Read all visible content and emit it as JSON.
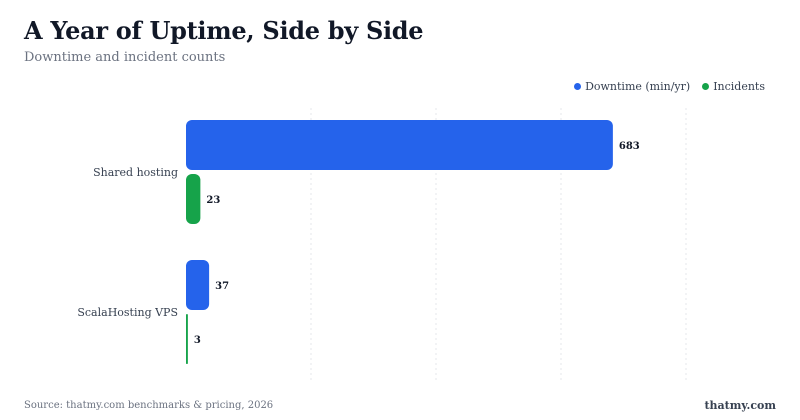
{
  "header": {
    "title": "A Year of Uptime, Side by Side",
    "subtitle": "Downtime and incident counts"
  },
  "footer": {
    "source": "Source: thatmy.com benchmarks & pricing, 2026",
    "brand": "thatmy.com"
  },
  "colors": {
    "downtime": "#2563eb",
    "incidents": "#16a34a",
    "grid": "#e5e7eb"
  },
  "chart_data": {
    "type": "bar",
    "orientation": "horizontal",
    "categories": [
      "Shared hosting",
      "ScalaHosting VPS"
    ],
    "series": [
      {
        "name": "Downtime (min/yr)",
        "values": [
          683,
          37
        ]
      },
      {
        "name": "Incidents",
        "values": [
          23,
          3
        ]
      }
    ],
    "xlim": [
      0,
      800
    ],
    "grid": true,
    "legend": "top-right",
    "data_labels": true
  }
}
